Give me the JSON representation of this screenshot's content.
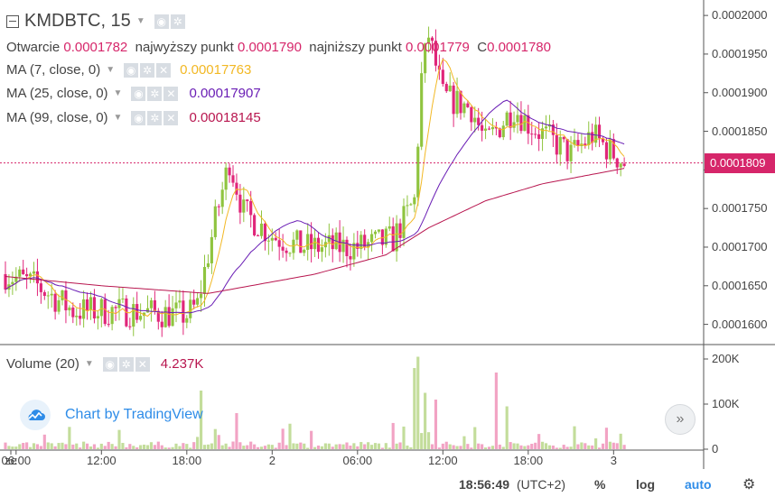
{
  "header": {
    "symbol": "KMDBTC, 15",
    "ohlc": {
      "open_label": "Otwarcie",
      "open": "0.0001782",
      "high_label": "najwyższy punkt",
      "high": "0.0001790",
      "low_label": "najniższy punkt",
      "low": "0.0001779",
      "close_label": "C",
      "close": "0.0001780"
    }
  },
  "indicators": [
    {
      "label": "MA (7, close, 0)",
      "value": "0.00017763",
      "color": "#f2b824"
    },
    {
      "label": "MA (25, close, 0)",
      "value": "0.00017907",
      "color": "#6a1eb5"
    },
    {
      "label": "MA (99, close, 0)",
      "value": "0.00018145",
      "color": "#b8164f"
    }
  ],
  "volume": {
    "label": "Volume (20)",
    "value": "4.237K"
  },
  "price_axis": {
    "ticks": [
      "0.0002000",
      "0.0001950",
      "0.0001900",
      "0.0001850",
      "0.0001800",
      "0.0001750",
      "0.0001700",
      "0.0001650",
      "0.0001600"
    ],
    "current_price": "0.0001809"
  },
  "volume_axis": {
    "ticks": [
      "200K",
      "100K",
      "0"
    ]
  },
  "time_axis": {
    "ticks": [
      "ze",
      "06:00",
      "12:00",
      "18:00",
      "2",
      "06:00",
      "12:00",
      "18:00",
      "3"
    ]
  },
  "watermark": "Chart by TradingView",
  "bottom_bar": {
    "time": "18:56:49",
    "timezone": "(UTC+2)",
    "percent": "%",
    "log": "log",
    "auto": "auto"
  },
  "colors": {
    "up": "#8fc43f",
    "down": "#e0267a",
    "ma7": "#f2b824",
    "ma25": "#6a1eb5",
    "ma99": "#b8164f",
    "last_price": "#d6266a"
  },
  "chart_data": {
    "type": "candlestick",
    "interval": "15",
    "x_start": "1 05:15",
    "y_range": [
      0.0001575,
      0.000202
    ],
    "volume_range": [
      0,
      200000
    ],
    "anchors": [
      {
        "t": "1 05:15",
        "close": 0.0001665
      },
      {
        "t": "1 07:30",
        "close": 0.000165
      },
      {
        "t": "1 10:00",
        "close": 0.0001618
      },
      {
        "t": "1 14:00",
        "close": 0.0001617
      },
      {
        "t": "1 18:00",
        "close": 0.0001612
      },
      {
        "t": "1 18:45",
        "close": 0.0001625
      },
      {
        "t": "1 20:00",
        "close": 0.0001735
      },
      {
        "t": "1 21:00",
        "close": 0.0001812
      },
      {
        "t": "1 22:00",
        "close": 0.0001745
      },
      {
        "t": "2 00:00",
        "close": 0.0001715
      },
      {
        "t": "2 02:00",
        "close": 0.00017
      },
      {
        "t": "2 06:00",
        "close": 0.00017
      },
      {
        "t": "2 08:30",
        "close": 0.000171
      },
      {
        "t": "2 10:00",
        "close": 0.000176
      },
      {
        "t": "2 10:30",
        "close": 0.000192
      },
      {
        "t": "2 11:00",
        "close": 0.0001975
      },
      {
        "t": "2 12:00",
        "close": 0.0001895
      },
      {
        "t": "2 14:00",
        "close": 0.000188
      },
      {
        "t": "2 15:00",
        "close": 0.0001835
      },
      {
        "t": "2 17:00",
        "close": 0.000188
      },
      {
        "t": "2 18:00",
        "close": 0.000186
      },
      {
        "t": "2 21:00",
        "close": 0.000182
      },
      {
        "t": "2 22:30",
        "close": 0.0001845
      },
      {
        "t": "3 00:45",
        "close": 0.0001809
      }
    ],
    "ma99_anchors": [
      {
        "t": "1 05:15",
        "value": 0.0001662
      },
      {
        "t": "1 12:00",
        "value": 0.000165
      },
      {
        "t": "1 19:30",
        "value": 0.000164
      },
      {
        "t": "2 03:00",
        "value": 0.0001665
      },
      {
        "t": "2 08:00",
        "value": 0.000169
      },
      {
        "t": "2 11:00",
        "value": 0.0001725
      },
      {
        "t": "2 15:00",
        "value": 0.000176
      },
      {
        "t": "2 19:00",
        "value": 0.0001782
      },
      {
        "t": "3 00:45",
        "value": 0.0001802
      }
    ],
    "volume_spikes": [
      {
        "t": "1 19:00",
        "value": 130000
      },
      {
        "t": "1 21:30",
        "value": 80000
      },
      {
        "t": "2 10:15",
        "value": 205000
      },
      {
        "t": "2 10:00",
        "value": 180000
      },
      {
        "t": "2 10:45",
        "value": 125000
      },
      {
        "t": "2 11:30",
        "value": 110000
      },
      {
        "t": "2 15:45",
        "value": 170000
      },
      {
        "t": "2 16:30",
        "value": 95000
      }
    ],
    "last_price": 0.0001809
  }
}
